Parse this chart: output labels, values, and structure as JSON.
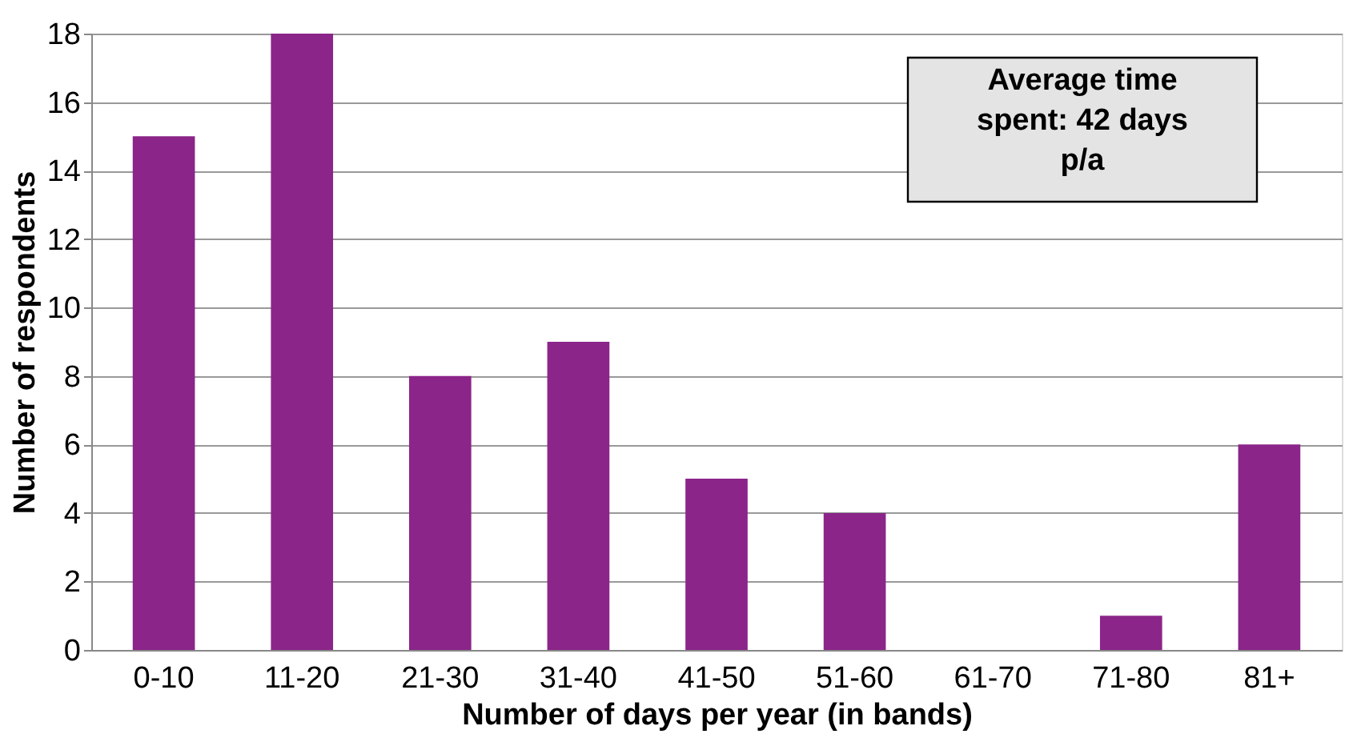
{
  "chart_data": {
    "type": "bar",
    "categories": [
      "0-10",
      "11-20",
      "21-30",
      "31-40",
      "41-50",
      "51-60",
      "61-70",
      "71-80",
      "81+"
    ],
    "values": [
      15,
      18,
      8,
      9,
      5,
      4,
      0,
      1,
      6
    ],
    "color": "#8b2589",
    "xlabel": "Number of days per year (in bands)",
    "ylabel": "Number of respondents",
    "ylim": [
      0,
      18
    ],
    "yticks": [
      0,
      2,
      4,
      6,
      8,
      10,
      12,
      14,
      16,
      18
    ],
    "grid": "y",
    "annotations": [
      "Average time spent: 42 days p/a"
    ]
  }
}
